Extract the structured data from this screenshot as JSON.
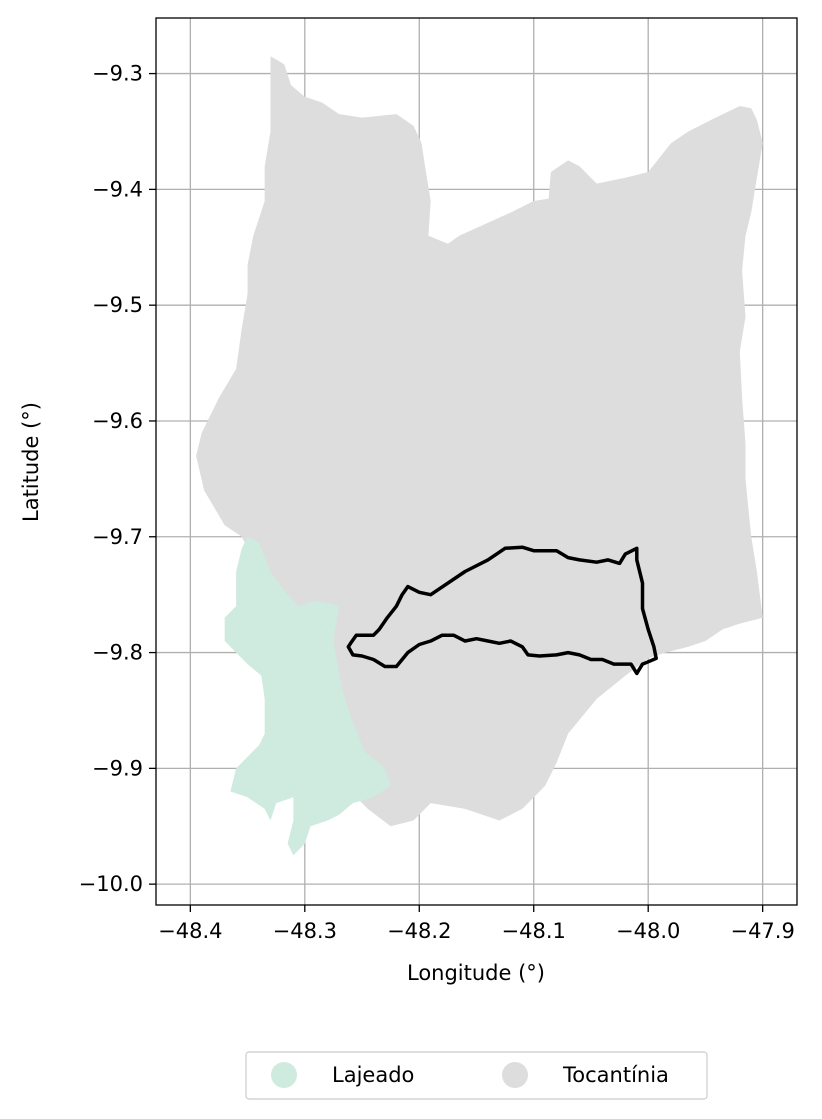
{
  "map": {
    "xlabel": "Longitude (°)",
    "ylabel": "Latitude (°)",
    "xlim": [
      -48.43,
      -47.87
    ],
    "ylim": [
      -10.018,
      -9.252
    ],
    "xticks": [
      -48.4,
      -48.3,
      -48.2,
      -48.1,
      -48.0,
      -47.9
    ],
    "yticks": [
      -9.3,
      -9.4,
      -9.5,
      -9.6,
      -9.7,
      -9.8,
      -9.9,
      -10.0
    ],
    "xtick_labels": [
      "−48.4",
      "−48.3",
      "−48.2",
      "−48.1",
      "−48.0",
      "−47.9"
    ],
    "ytick_labels": [
      "−9.3",
      "−9.4",
      "−9.5",
      "−9.6",
      "−9.7",
      "−9.8",
      "−9.9",
      "−10.0"
    ],
    "grid": true,
    "colors": {
      "Lajeado": "#cfeadf",
      "Tocantínia": "#dddddd",
      "outline": "#000000",
      "grid": "#b0b0b0"
    },
    "legend": {
      "placement": "bottom-center",
      "entries": [
        "Lajeado",
        "Tocantínia"
      ]
    },
    "regions": [
      {
        "name": "Tocantínia",
        "polygon": [
          [
            -48.33,
            -9.285
          ],
          [
            -48.318,
            -9.292
          ],
          [
            -48.312,
            -9.31
          ],
          [
            -48.3,
            -9.32
          ],
          [
            -48.285,
            -9.325
          ],
          [
            -48.27,
            -9.335
          ],
          [
            -48.25,
            -9.338
          ],
          [
            -48.22,
            -9.335
          ],
          [
            -48.205,
            -9.345
          ],
          [
            -48.198,
            -9.36
          ],
          [
            -48.195,
            -9.38
          ],
          [
            -48.19,
            -9.41
          ],
          [
            -48.192,
            -9.44
          ],
          [
            -48.175,
            -9.447
          ],
          [
            -48.165,
            -9.44
          ],
          [
            -48.12,
            -9.42
          ],
          [
            -48.1,
            -9.41
          ],
          [
            -48.087,
            -9.408
          ],
          [
            -48.085,
            -9.385
          ],
          [
            -48.07,
            -9.375
          ],
          [
            -48.06,
            -9.38
          ],
          [
            -48.045,
            -9.395
          ],
          [
            -48.02,
            -9.39
          ],
          [
            -48.0,
            -9.385
          ],
          [
            -47.98,
            -9.36
          ],
          [
            -47.965,
            -9.35
          ],
          [
            -47.945,
            -9.34
          ],
          [
            -47.92,
            -9.328
          ],
          [
            -47.91,
            -9.33
          ],
          [
            -47.905,
            -9.34
          ],
          [
            -47.9,
            -9.36
          ],
          [
            -47.905,
            -9.39
          ],
          [
            -47.91,
            -9.42
          ],
          [
            -47.915,
            -9.44
          ],
          [
            -47.918,
            -9.47
          ],
          [
            -47.915,
            -9.51
          ],
          [
            -47.92,
            -9.54
          ],
          [
            -47.918,
            -9.58
          ],
          [
            -47.915,
            -9.62
          ],
          [
            -47.915,
            -9.65
          ],
          [
            -47.91,
            -9.7
          ],
          [
            -47.905,
            -9.73
          ],
          [
            -47.9,
            -9.77
          ],
          [
            -47.92,
            -9.775
          ],
          [
            -47.935,
            -9.78
          ],
          [
            -47.95,
            -9.79
          ],
          [
            -47.965,
            -9.795
          ],
          [
            -47.985,
            -9.8
          ],
          [
            -48.0,
            -9.805
          ],
          [
            -48.02,
            -9.82
          ],
          [
            -48.045,
            -9.84
          ],
          [
            -48.07,
            -9.87
          ],
          [
            -48.08,
            -9.895
          ],
          [
            -48.09,
            -9.915
          ],
          [
            -48.11,
            -9.935
          ],
          [
            -48.13,
            -9.945
          ],
          [
            -48.16,
            -9.935
          ],
          [
            -48.19,
            -9.93
          ],
          [
            -48.205,
            -9.945
          ],
          [
            -48.225,
            -9.95
          ],
          [
            -48.245,
            -9.935
          ],
          [
            -48.26,
            -9.92
          ],
          [
            -48.268,
            -9.86
          ],
          [
            -48.27,
            -9.83
          ],
          [
            -48.272,
            -9.81
          ],
          [
            -48.275,
            -9.8
          ],
          [
            -48.28,
            -9.79
          ],
          [
            -48.305,
            -9.775
          ],
          [
            -48.325,
            -9.74
          ],
          [
            -48.345,
            -9.72
          ],
          [
            -48.355,
            -9.7
          ],
          [
            -48.37,
            -9.69
          ],
          [
            -48.388,
            -9.66
          ],
          [
            -48.395,
            -9.63
          ],
          [
            -48.39,
            -9.61
          ],
          [
            -48.375,
            -9.58
          ],
          [
            -48.36,
            -9.555
          ],
          [
            -48.355,
            -9.52
          ],
          [
            -48.35,
            -9.49
          ],
          [
            -48.35,
            -9.465
          ],
          [
            -48.345,
            -9.44
          ],
          [
            -48.335,
            -9.41
          ],
          [
            -48.335,
            -9.38
          ],
          [
            -48.33,
            -9.35
          ],
          [
            -48.33,
            -9.32
          ]
        ]
      },
      {
        "name": "Lajeado",
        "polygon": [
          [
            -48.35,
            -9.7
          ],
          [
            -48.34,
            -9.705
          ],
          [
            -48.33,
            -9.73
          ],
          [
            -48.315,
            -9.75
          ],
          [
            -48.305,
            -9.76
          ],
          [
            -48.29,
            -9.755
          ],
          [
            -48.27,
            -9.76
          ],
          [
            -48.275,
            -9.79
          ],
          [
            -48.268,
            -9.83
          ],
          [
            -48.258,
            -9.86
          ],
          [
            -48.248,
            -9.885
          ],
          [
            -48.23,
            -9.9
          ],
          [
            -48.225,
            -9.915
          ],
          [
            -48.24,
            -9.925
          ],
          [
            -48.258,
            -9.93
          ],
          [
            -48.27,
            -9.94
          ],
          [
            -48.28,
            -9.945
          ],
          [
            -48.295,
            -9.95
          ],
          [
            -48.3,
            -9.965
          ],
          [
            -48.31,
            -9.975
          ],
          [
            -48.315,
            -9.965
          ],
          [
            -48.31,
            -9.945
          ],
          [
            -48.31,
            -9.925
          ],
          [
            -48.325,
            -9.93
          ],
          [
            -48.33,
            -9.945
          ],
          [
            -48.335,
            -9.935
          ],
          [
            -48.35,
            -9.925
          ],
          [
            -48.365,
            -9.92
          ],
          [
            -48.36,
            -9.9
          ],
          [
            -48.34,
            -9.88
          ],
          [
            -48.335,
            -9.87
          ],
          [
            -48.335,
            -9.84
          ],
          [
            -48.338,
            -9.82
          ],
          [
            -48.35,
            -9.81
          ],
          [
            -48.37,
            -9.79
          ],
          [
            -48.37,
            -9.77
          ],
          [
            -48.36,
            -9.76
          ],
          [
            -48.36,
            -9.73
          ],
          [
            -48.355,
            -9.71
          ]
        ]
      },
      {
        "name": "Outline",
        "polygon": [
          [
            -48.26,
            -9.792
          ],
          [
            -48.255,
            -9.785
          ],
          [
            -48.24,
            -9.785
          ],
          [
            -48.235,
            -9.78
          ],
          [
            -48.228,
            -9.77
          ],
          [
            -48.22,
            -9.76
          ],
          [
            -48.215,
            -9.75
          ],
          [
            -48.21,
            -9.743
          ],
          [
            -48.2,
            -9.748
          ],
          [
            -48.19,
            -9.75
          ],
          [
            -48.16,
            -9.73
          ],
          [
            -48.14,
            -9.72
          ],
          [
            -48.125,
            -9.71
          ],
          [
            -48.11,
            -9.709
          ],
          [
            -48.1,
            -9.712
          ],
          [
            -48.08,
            -9.712
          ],
          [
            -48.07,
            -9.718
          ],
          [
            -48.06,
            -9.72
          ],
          [
            -48.045,
            -9.722
          ],
          [
            -48.035,
            -9.72
          ],
          [
            -48.025,
            -9.723
          ],
          [
            -48.02,
            -9.715
          ],
          [
            -48.01,
            -9.71
          ],
          [
            -48.01,
            -9.72
          ],
          [
            -48.005,
            -9.74
          ],
          [
            -48.005,
            -9.762
          ],
          [
            -48.0,
            -9.78
          ],
          [
            -47.995,
            -9.795
          ],
          [
            -47.993,
            -9.805
          ],
          [
            -48.0,
            -9.808
          ],
          [
            -48.005,
            -9.81
          ],
          [
            -48.01,
            -9.818
          ],
          [
            -48.015,
            -9.81
          ],
          [
            -48.03,
            -9.81
          ],
          [
            -48.04,
            -9.806
          ],
          [
            -48.05,
            -9.806
          ],
          [
            -48.06,
            -9.802
          ],
          [
            -48.07,
            -9.8
          ],
          [
            -48.08,
            -9.802
          ],
          [
            -48.095,
            -9.803
          ],
          [
            -48.105,
            -9.802
          ],
          [
            -48.11,
            -9.795
          ],
          [
            -48.12,
            -9.79
          ],
          [
            -48.13,
            -9.792
          ],
          [
            -48.14,
            -9.79
          ],
          [
            -48.15,
            -9.788
          ],
          [
            -48.16,
            -9.79
          ],
          [
            -48.17,
            -9.785
          ],
          [
            -48.18,
            -9.785
          ],
          [
            -48.19,
            -9.79
          ],
          [
            -48.2,
            -9.793
          ],
          [
            -48.21,
            -9.8
          ],
          [
            -48.22,
            -9.812
          ],
          [
            -48.23,
            -9.812
          ],
          [
            -48.24,
            -9.806
          ],
          [
            -48.25,
            -9.803
          ],
          [
            -48.258,
            -9.802
          ],
          [
            -48.262,
            -9.795
          ]
        ]
      }
    ]
  }
}
